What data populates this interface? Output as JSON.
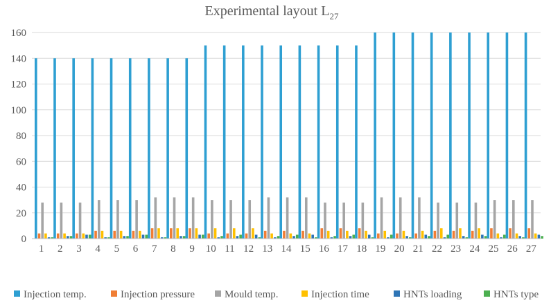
{
  "chart_data": {
    "type": "bar",
    "title": "Experimental layout L",
    "title_subscript": "27",
    "ylim": [
      0,
      160
    ],
    "yticks": [
      0,
      20,
      40,
      60,
      80,
      100,
      120,
      140,
      160
    ],
    "grid": true,
    "legend_position": "bottom",
    "categories": [
      "1",
      "2",
      "3",
      "4",
      "5",
      "6",
      "7",
      "8",
      "9",
      "10",
      "11",
      "12",
      "13",
      "14",
      "15",
      "16",
      "17",
      "18",
      "19",
      "20",
      "21",
      "22",
      "23",
      "24",
      "25",
      "26",
      "27"
    ],
    "series": [
      {
        "name": "Injection temp.",
        "color": "#2E9FD2",
        "values": [
          140,
          140,
          140,
          140,
          140,
          140,
          140,
          140,
          140,
          150,
          150,
          150,
          150,
          150,
          150,
          150,
          150,
          150,
          160,
          160,
          160,
          160,
          160,
          160,
          160,
          160,
          160
        ]
      },
      {
        "name": "Injection pressure",
        "color": "#F07E35",
        "values": [
          4,
          4,
          4,
          6,
          6,
          6,
          8,
          8,
          8,
          4,
          4,
          4,
          6,
          6,
          6,
          8,
          8,
          8,
          4,
          4,
          4,
          6,
          6,
          6,
          8,
          8,
          8
        ]
      },
      {
        "name": "Mould temp.",
        "color": "#A5A5A5",
        "values": [
          28,
          28,
          28,
          30,
          30,
          30,
          32,
          32,
          32,
          30,
          30,
          30,
          32,
          32,
          32,
          28,
          28,
          28,
          32,
          32,
          32,
          28,
          28,
          28,
          30,
          30,
          30
        ]
      },
      {
        "name": "Injection time",
        "color": "#FFC000",
        "values": [
          4,
          4,
          4,
          6,
          6,
          6,
          8,
          8,
          8,
          8,
          8,
          8,
          4,
          4,
          4,
          6,
          6,
          6,
          6,
          6,
          6,
          8,
          8,
          8,
          4,
          4,
          4
        ]
      },
      {
        "name": "HNTs loading",
        "color": "#2E75B6",
        "values": [
          1,
          2,
          3,
          1,
          2,
          3,
          1,
          2,
          3,
          1,
          2,
          3,
          1,
          2,
          3,
          1,
          2,
          3,
          1,
          2,
          3,
          1,
          2,
          3,
          1,
          2,
          3
        ]
      },
      {
        "name": "HNTs type",
        "color": "#4CAF50",
        "values": [
          1,
          2,
          3,
          1,
          2,
          3,
          1,
          2,
          3,
          2,
          3,
          1,
          2,
          3,
          1,
          2,
          3,
          1,
          3,
          1,
          2,
          3,
          1,
          2,
          3,
          1,
          2
        ]
      }
    ]
  }
}
